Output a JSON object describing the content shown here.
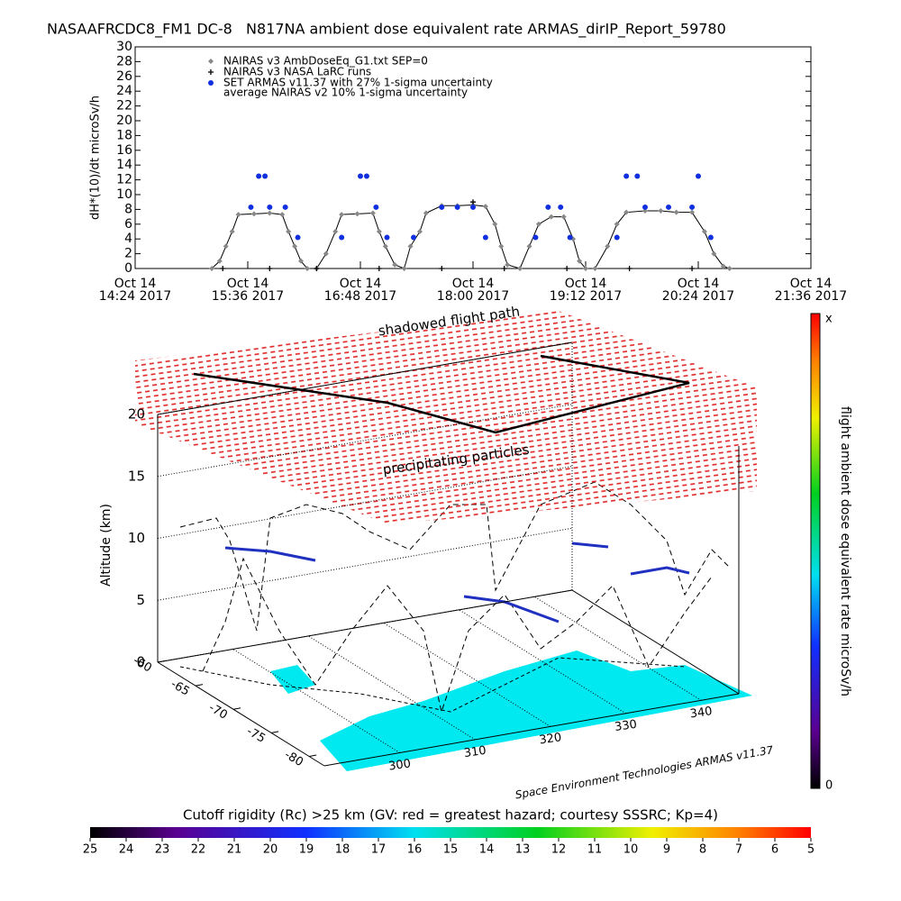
{
  "chart_data": [
    {
      "type": "line",
      "title": "NASAAFRCDC8_FM1 DC-8   N817NA ambient dose equivalent rate ARMAS_dirIP_Report_59780",
      "ylabel": "dH*(10)/dt microSv/h",
      "xlim": [
        "2017-10-14T14:24",
        "2017-10-14T21:36"
      ],
      "xticks": [
        {
          "value": "2017-10-14T14:24",
          "label": [
            "Oct  14",
            "14:24 2017"
          ]
        },
        {
          "value": "2017-10-14T15:36",
          "label": [
            "Oct  14",
            "15:36 2017"
          ]
        },
        {
          "value": "2017-10-14T16:48",
          "label": [
            "Oct  14",
            "16:48 2017"
          ]
        },
        {
          "value": "2017-10-14T18:00",
          "label": [
            "Oct  14",
            "18:00 2017"
          ]
        },
        {
          "value": "2017-10-14T19:12",
          "label": [
            "Oct  14",
            "19:12 2017"
          ]
        },
        {
          "value": "2017-10-14T20:24",
          "label": [
            "Oct  14",
            "20:24 2017"
          ]
        },
        {
          "value": "2017-10-14T21:36",
          "label": [
            "Oct  14",
            "21:36 2017"
          ]
        }
      ],
      "ylim": [
        0,
        30
      ],
      "yticks": [
        0,
        2,
        4,
        6,
        8,
        10,
        12,
        14,
        16,
        18,
        20,
        22,
        24,
        26,
        28,
        30
      ],
      "legend_note": "average NAIRAS v2 10% 1-sigma uncertainty",
      "series": [
        {
          "name": "NAIRAS v3 AmbDoseEq_G1.txt SEP=0",
          "color": "#888888",
          "marker": "diamond",
          "x": [
            "2017-10-14T15:13",
            "2017-10-14T15:18",
            "2017-10-14T15:22",
            "2017-10-14T15:26",
            "2017-10-14T15:30",
            "2017-10-14T15:40",
            "2017-10-14T15:50",
            "2017-10-14T15:58",
            "2017-10-14T16:02",
            "2017-10-14T16:06",
            "2017-10-14T16:10",
            "2017-10-14T16:14",
            "2017-10-14T16:20",
            "2017-10-14T16:26",
            "2017-10-14T16:32",
            "2017-10-14T16:36",
            "2017-10-14T16:46",
            "2017-10-14T16:56",
            "2017-10-14T17:00",
            "2017-10-14T17:04",
            "2017-10-14T17:10",
            "2017-10-14T17:16",
            "2017-10-14T17:20",
            "2017-10-14T17:26",
            "2017-10-14T17:30",
            "2017-10-14T17:40",
            "2017-10-14T17:50",
            "2017-10-14T18:00",
            "2017-10-14T18:08",
            "2017-10-14T18:14",
            "2017-10-14T18:18",
            "2017-10-14T18:22",
            "2017-10-14T18:30",
            "2017-10-14T18:36",
            "2017-10-14T18:42",
            "2017-10-14T18:50",
            "2017-10-14T18:58",
            "2017-10-14T19:04",
            "2017-10-14T19:08",
            "2017-10-14T19:12",
            "2017-10-14T19:18",
            "2017-10-14T19:26",
            "2017-10-14T19:32",
            "2017-10-14T19:38",
            "2017-10-14T19:50",
            "2017-10-14T20:00",
            "2017-10-14T20:10",
            "2017-10-14T20:20",
            "2017-10-14T20:28",
            "2017-10-14T20:34",
            "2017-10-14T20:40",
            "2017-10-14T20:44"
          ],
          "values": [
            0,
            1,
            3,
            5,
            7.3,
            7.4,
            7.5,
            7.3,
            5,
            3,
            1,
            0,
            0,
            2,
            5,
            7.3,
            7.4,
            7.5,
            5,
            3,
            0.5,
            0,
            3,
            5,
            7.5,
            8.5,
            8.5,
            8.6,
            8.4,
            6,
            3,
            0.5,
            0,
            3,
            6,
            7,
            7,
            4,
            1,
            0,
            0,
            3,
            6,
            7.6,
            7.8,
            7.8,
            7.6,
            7.6,
            5,
            2,
            0.3,
            0
          ]
        },
        {
          "name": "NAIRAS v3 NASA LaRC runs",
          "color": "#000000",
          "marker": "plus",
          "x": [
            "2017-10-14T15:20",
            "2017-10-14T15:50",
            "2017-10-14T16:20",
            "2017-10-14T17:00",
            "2017-10-14T17:40",
            "2017-10-14T18:00",
            "2017-10-14T18:20",
            "2017-10-14T19:00",
            "2017-10-14T19:40",
            "2017-10-14T20:20"
          ],
          "values": [
            0,
            0,
            0,
            0,
            0,
            9,
            0,
            0,
            0,
            0
          ]
        },
        {
          "name": "SET ARMAS v11.37 with 27% 1-sigma uncertainty",
          "color": "#1030e0",
          "marker": "dot",
          "x": [
            "2017-10-14T15:38",
            "2017-10-14T15:43",
            "2017-10-14T15:47",
            "2017-10-14T15:50",
            "2017-10-14T16:00",
            "2017-10-14T16:08",
            "2017-10-14T16:36",
            "2017-10-14T16:48",
            "2017-10-14T16:52",
            "2017-10-14T16:58",
            "2017-10-14T17:05",
            "2017-10-14T17:22",
            "2017-10-14T17:40",
            "2017-10-14T17:50",
            "2017-10-14T18:00",
            "2017-10-14T18:08",
            "2017-10-14T18:40",
            "2017-10-14T18:48",
            "2017-10-14T18:56",
            "2017-10-14T19:02",
            "2017-10-14T19:32",
            "2017-10-14T19:38",
            "2017-10-14T19:45",
            "2017-10-14T19:50",
            "2017-10-14T20:05",
            "2017-10-14T20:20",
            "2017-10-14T20:24",
            "2017-10-14T20:32"
          ],
          "values": [
            8.3,
            12.5,
            12.5,
            8.3,
            8.3,
            4.2,
            4.2,
            12.5,
            12.5,
            8.3,
            4.2,
            4.2,
            8.3,
            8.3,
            8.3,
            4.2,
            4.2,
            8.3,
            8.3,
            4.2,
            4.2,
            12.5,
            12.5,
            8.3,
            8.3,
            8.3,
            12.5,
            4.2
          ]
        }
      ]
    },
    {
      "type": "surface3d",
      "zlabel": "Altitude (km)",
      "zlim": [
        0,
        20
      ],
      "zticks": [
        0,
        5,
        10,
        15,
        20
      ],
      "xlim": [
        290,
        345
      ],
      "xticks": [
        300,
        310,
        320,
        330,
        340
      ],
      "ylim": [
        -60,
        -82
      ],
      "yticks": [
        -60,
        -65,
        -70,
        -75,
        -80
      ],
      "annotations": [
        "shadowed flight path",
        "precipitating particles"
      ],
      "credit": "Space Environment Technologies ARMAS v11.37",
      "colorbar": {
        "title": "flight ambient dose equivalent rate microSv/h",
        "top_label": "x",
        "bottom_label": 0
      }
    },
    {
      "type": "colorbar",
      "title": "Cutoff rigidity (Rc) >25 km (GV: red = greatest hazard; courtesy SSSRC; Kp=4)",
      "lim": [
        25,
        5
      ],
      "ticks": [
        25,
        24,
        23,
        22,
        21,
        20,
        19,
        18,
        17,
        16,
        15,
        14,
        13,
        12,
        11,
        10,
        9,
        8,
        7,
        6,
        5
      ]
    }
  ]
}
